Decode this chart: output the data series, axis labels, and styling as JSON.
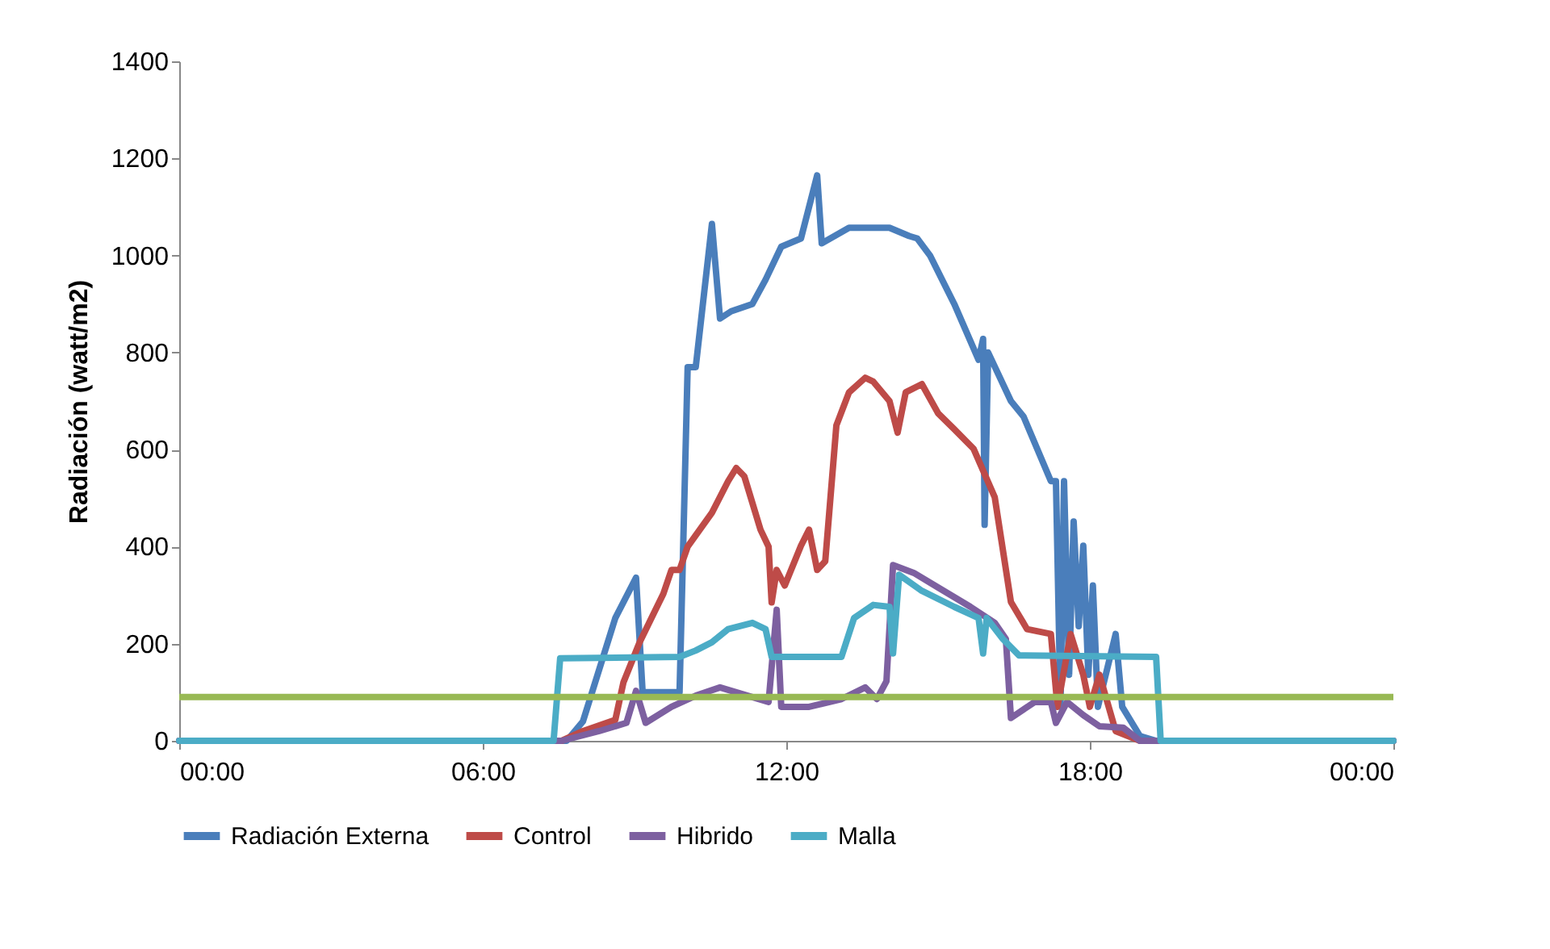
{
  "chart_data": {
    "type": "line",
    "ylabel": "Radiación (watt/m2)",
    "xlim": [
      0,
      24
    ],
    "xticks": [
      {
        "value": 0,
        "label": "00:00"
      },
      {
        "value": 6,
        "label": "06:00"
      },
      {
        "value": 12,
        "label": "12:00"
      },
      {
        "value": 18,
        "label": "18:00"
      },
      {
        "value": 24,
        "label": "00:00"
      }
    ],
    "ylim": [
      0,
      1400
    ],
    "yticks": [
      0,
      200,
      400,
      600,
      800,
      1000,
      1200,
      1400
    ],
    "grid": false,
    "legend": "bottom",
    "marker": "none",
    "line_style": "solid",
    "ref_lines": [
      {
        "axis": "y",
        "value": 90,
        "color": "#98b954"
      }
    ],
    "series": [
      {
        "name": "Radiación Externa",
        "color": "#4a7ebb",
        "x": [
          0,
          7.66,
          7.98,
          8.62,
          9.03,
          9.16,
          9.89,
          10.05,
          10.21,
          10.53,
          10.69,
          10.91,
          11.33,
          11.59,
          11.9,
          12.29,
          12.61,
          12.7,
          13.24,
          14.04,
          14.43,
          14.59,
          14.84,
          15.32,
          15.8,
          15.89,
          15.92,
          15.99,
          16.44,
          16.69,
          17.23,
          17.33,
          17.42,
          17.49,
          17.59,
          17.68,
          17.78,
          17.87,
          17.97,
          18.06,
          18.16,
          18.51,
          18.64,
          18.99,
          19.31,
          24
        ],
        "values": [
          0,
          0,
          40,
          253,
          336,
          100,
          100,
          770,
          770,
          1065,
          870,
          885,
          900,
          950,
          1018,
          1035,
          1165,
          1025,
          1057,
          1057,
          1040,
          1035,
          1000,
          900,
          785,
          828,
          445,
          800,
          700,
          668,
          535,
          535,
          70,
          535,
          136,
          452,
          236,
          402,
          136,
          320,
          70,
          220,
          70,
          10,
          0,
          0
        ]
      },
      {
        "name": "Control",
        "color": "#be4b48",
        "x": [
          0,
          7.56,
          7.98,
          8.62,
          8.78,
          9.1,
          9.57,
          9.73,
          9.89,
          10.05,
          10.53,
          10.85,
          11.01,
          11.17,
          11.49,
          11.65,
          11.71,
          11.81,
          11.97,
          12.29,
          12.45,
          12.61,
          12.77,
          12.99,
          13.24,
          13.56,
          13.72,
          14.04,
          14.2,
          14.36,
          14.68,
          15.0,
          15.32,
          15.7,
          16.12,
          16.44,
          16.76,
          17.23,
          17.36,
          17.62,
          17.87,
          18.0,
          18.19,
          18.51,
          18.99,
          24
        ],
        "values": [
          0,
          0,
          20,
          43,
          120,
          203,
          303,
          352,
          352,
          400,
          470,
          535,
          562,
          545,
          435,
          400,
          285,
          352,
          320,
          402,
          435,
          352,
          370,
          650,
          718,
          748,
          740,
          700,
          635,
          718,
          735,
          675,
          642,
          602,
          502,
          286,
          230,
          220,
          70,
          220,
          136,
          70,
          136,
          20,
          0,
          0
        ]
      },
      {
        "name": "Hibrido",
        "color": "#7d60a0",
        "x": [
          0,
          7.56,
          8.3,
          8.84,
          9.03,
          9.22,
          9.73,
          10.21,
          10.69,
          11.01,
          11.65,
          11.81,
          11.9,
          12.45,
          13.09,
          13.56,
          13.79,
          13.98,
          14.11,
          14.52,
          15.0,
          15.64,
          16.12,
          16.34,
          16.44,
          16.91,
          17.23,
          17.33,
          17.55,
          17.87,
          18.19,
          18.66,
          18.99,
          24
        ],
        "values": [
          0,
          0,
          20,
          37,
          103,
          37,
          70,
          93,
          110,
          100,
          80,
          270,
          70,
          70,
          86,
          110,
          86,
          123,
          362,
          346,
          316,
          276,
          243,
          210,
          47,
          80,
          80,
          37,
          80,
          53,
          30,
          27,
          0,
          0
        ]
      },
      {
        "name": "Malla",
        "color": "#4bacc6",
        "x": [
          0,
          7.4,
          7.53,
          9.89,
          10.21,
          10.53,
          10.85,
          11.33,
          11.59,
          11.71,
          13.09,
          13.34,
          13.72,
          14.04,
          14.11,
          14.23,
          14.68,
          15.32,
          15.8,
          15.89,
          15.96,
          16.28,
          16.6,
          19.31,
          19.4,
          24
        ],
        "values": [
          0,
          0,
          170,
          173,
          186,
          203,
          230,
          243,
          230,
          173,
          173,
          253,
          280,
          276,
          180,
          342,
          309,
          276,
          253,
          180,
          253,
          210,
          176,
          173,
          0,
          0
        ]
      }
    ]
  }
}
